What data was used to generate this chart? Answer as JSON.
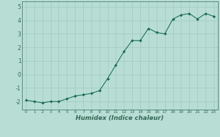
{
  "x": [
    0,
    1,
    2,
    3,
    4,
    5,
    6,
    7,
    8,
    9,
    10,
    11,
    12,
    13,
    14,
    15,
    16,
    17,
    18,
    19,
    20,
    21,
    22,
    23
  ],
  "y": [
    -1.9,
    -2.0,
    -2.1,
    -2.0,
    -2.0,
    -1.8,
    -1.6,
    -1.5,
    -1.4,
    -1.2,
    -0.3,
    0.7,
    1.7,
    2.5,
    2.5,
    3.4,
    3.1,
    3.0,
    4.1,
    4.4,
    4.5,
    4.1,
    4.5,
    4.3
  ],
  "xlabel": "Humidex (Indice chaleur)",
  "xlim": [
    -0.5,
    23.5
  ],
  "ylim": [
    -2.6,
    5.4
  ],
  "yticks": [
    -2,
    -1,
    0,
    1,
    2,
    3,
    4,
    5
  ],
  "xticks": [
    0,
    1,
    2,
    3,
    4,
    5,
    6,
    7,
    8,
    9,
    10,
    11,
    12,
    13,
    14,
    15,
    16,
    17,
    18,
    19,
    20,
    21,
    22,
    23
  ],
  "line_color": "#1a6b5a",
  "marker_color": "#1a6b5a",
  "bg_color": "#b8ddd4",
  "grid_color": "#9dc8be",
  "spine_color": "#336655"
}
